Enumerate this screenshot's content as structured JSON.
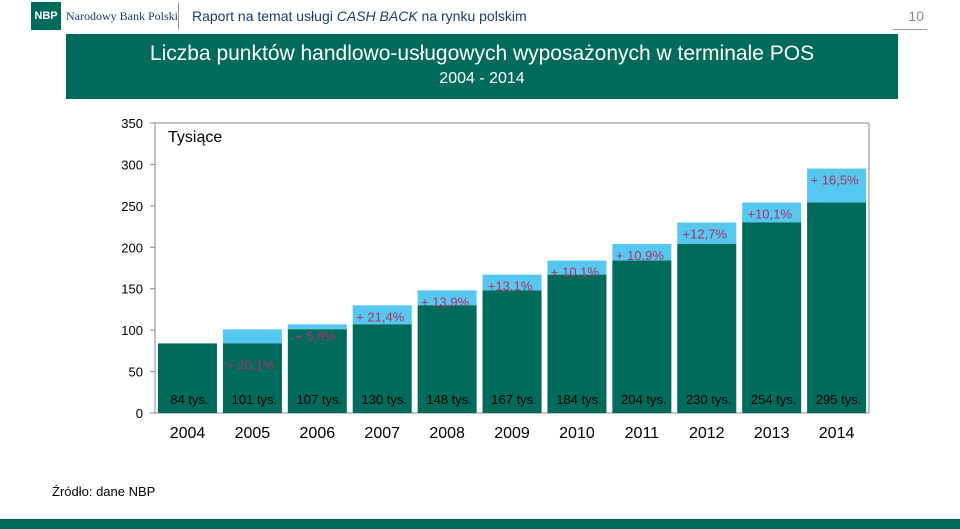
{
  "header": {
    "logo_abbr": "NBP",
    "logo_name": "Narodowy Bank Polski",
    "report_title_prefix": "Raport na temat usługi ",
    "report_title_emph": "CASH BACK",
    "report_title_suffix": " na rynku polskim",
    "page_number": "10"
  },
  "slide": {
    "title": "Liczba punktów handlowo-usługowych wyposażonych w terminale POS",
    "subtitle": "2004 - 2014",
    "source": "Źródło: dane NBP"
  },
  "colors": {
    "brand_green": "#006b5a",
    "bar_dark": "#006b5a",
    "bar_light": "#56c8f0",
    "growth_label": "#b0306a"
  },
  "chart_data": {
    "type": "bar",
    "unit_label": "Tysiące",
    "ylim": [
      0,
      350
    ],
    "yticks": [
      0,
      50,
      100,
      150,
      200,
      250,
      300,
      350
    ],
    "categories": [
      "2004",
      "2005",
      "2006",
      "2007",
      "2008",
      "2009",
      "2010",
      "2011",
      "2012",
      "2013",
      "2014"
    ],
    "values": [
      84,
      101,
      107,
      130,
      148,
      167,
      184,
      204,
      230,
      254,
      295
    ],
    "value_labels": [
      "84 tys.",
      "101 tys.",
      "107 tys.",
      "130 tys.",
      "148 tys.",
      "167 tys.",
      "184 tys.",
      "204 tys.",
      "230 tys.",
      "254 tys.",
      "295 tys."
    ],
    "growth_labels": [
      "",
      "+ 20,1%",
      "+ 5,8%",
      "+ 21,4%",
      "+ 13,9%",
      "+13,1%",
      "+ 10,1%",
      "+ 10,9%",
      "+12,7%",
      "+10,1%",
      "+ 16,5%"
    ],
    "grid": false
  }
}
